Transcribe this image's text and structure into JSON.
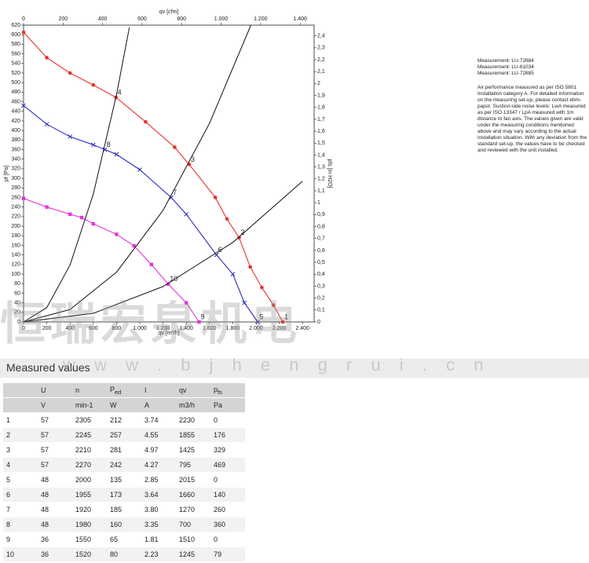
{
  "chart_data": {
    "type": "line",
    "xlabel": "qv [m³/h]",
    "x2label": "qv [cfm]",
    "ylabel": "pf [Pa]",
    "y2label": "pfs [in H2O]",
    "xlim": [
      0,
      2500
    ],
    "xticks": [
      0,
      200,
      400,
      600,
      800,
      {
        "value": 1000,
        "label": "1.000"
      },
      {
        "value": 1200,
        "label": "1.200"
      },
      {
        "value": 1400,
        "label": "1.400"
      },
      {
        "value": 1600,
        "label": "1.600"
      },
      {
        "value": 1800,
        "label": "1.800"
      },
      {
        "value": 2000,
        "label": "2.000"
      },
      {
        "value": 2200,
        "label": "2.200"
      },
      {
        "value": 2400,
        "label": "2.400"
      }
    ],
    "x2lim": [
      0,
      1471
    ],
    "x2ticks": [
      0,
      200,
      400,
      600,
      800,
      {
        "value": 1000,
        "label": "1.000"
      },
      {
        "value": 1200,
        "label": "1.200"
      },
      {
        "value": 1400,
        "label": "1.400"
      }
    ],
    "ylim": [
      0,
      620
    ],
    "yticks": [
      0,
      20,
      40,
      60,
      80,
      100,
      120,
      140,
      160,
      180,
      200,
      220,
      240,
      260,
      280,
      300,
      320,
      340,
      360,
      380,
      400,
      420,
      440,
      460,
      480,
      500,
      520,
      540,
      560,
      580,
      600,
      620
    ],
    "y2lim": [
      0,
      2.49
    ],
    "y2ticks": [
      0,
      {
        "value": 0.1,
        "label": "0,1"
      },
      {
        "value": 0.2,
        "label": "0,2"
      },
      {
        "value": 0.3,
        "label": "0,3"
      },
      {
        "value": 0.4,
        "label": "0,4"
      },
      {
        "value": 0.5,
        "label": "0,5"
      },
      {
        "value": 0.6,
        "label": "0,6"
      },
      {
        "value": 0.7,
        "label": "0,7"
      },
      {
        "value": 0.8,
        "label": "0,8"
      },
      {
        "value": 0.9,
        "label": "0,9"
      },
      1,
      {
        "value": 1.1,
        "label": "1,1"
      },
      {
        "value": 1.2,
        "label": "1,2"
      },
      {
        "value": 1.3,
        "label": "1,3"
      },
      {
        "value": 1.4,
        "label": "1,4"
      },
      {
        "value": 1.5,
        "label": "1,5"
      },
      {
        "value": 1.6,
        "label": "1,6"
      },
      {
        "value": 1.7,
        "label": "1,7"
      },
      {
        "value": 1.8,
        "label": "1,8"
      },
      {
        "value": 1.9,
        "label": "1,9"
      },
      2,
      {
        "value": 2.1,
        "label": "2,1"
      },
      {
        "value": 2.2,
        "label": "2,2"
      },
      {
        "value": 2.3,
        "label": "2,3"
      },
      {
        "value": 2.4,
        "label": "2,4"
      }
    ],
    "series": [
      {
        "color": "#e8302b",
        "marker": "circle",
        "x": [
          0,
          200,
          400,
          600,
          795,
          1050,
          1300,
          1425,
          1650,
          1750,
          1855,
          1950,
          2050,
          2150,
          2230
        ],
        "values": [
          605,
          552,
          520,
          495,
          469,
          418,
          365,
          329,
          260,
          215,
          176,
          115,
          72,
          35,
          0
        ]
      },
      {
        "color": "#2b2bbf",
        "marker": "cross",
        "x": [
          0,
          200,
          400,
          600,
          700,
          800,
          1000,
          1270,
          1400,
          1660,
          1800,
          1900,
          2015
        ],
        "values": [
          452,
          413,
          387,
          370,
          360,
          350,
          318,
          260,
          225,
          140,
          100,
          40,
          0
        ]
      },
      {
        "color": "#e633d6",
        "marker": "square",
        "x": [
          0,
          200,
          400,
          500,
          600,
          800,
          950,
          1100,
          1245,
          1400,
          1510
        ],
        "values": [
          258,
          240,
          225,
          218,
          205,
          183,
          159,
          120,
          79,
          40,
          0
        ]
      },
      {
        "color": "#111111",
        "marker": "none",
        "x": [
          0,
          200,
          400,
          600,
          800,
          910
        ],
        "values": [
          0,
          30,
          119,
          267,
          475,
          615
        ]
      },
      {
        "color": "#111111",
        "marker": "none",
        "x": [
          0,
          400,
          800,
          1200,
          1600,
          1956
        ],
        "values": [
          0,
          26,
          104,
          233,
          415,
          620
        ]
      },
      {
        "color": "#111111",
        "marker": "none",
        "x": [
          0,
          600,
          1200,
          1800,
          2400
        ],
        "values": [
          0,
          18,
          74,
          166,
          294
        ]
      }
    ],
    "annotations": [
      {
        "text": "1",
        "x": 2230,
        "y": 0
      },
      {
        "text": "2",
        "x": 1855,
        "y": 176
      },
      {
        "text": "3",
        "x": 1425,
        "y": 329
      },
      {
        "text": "4",
        "x": 795,
        "y": 469
      },
      {
        "text": "5",
        "x": 2015,
        "y": 0
      },
      {
        "text": "6",
        "x": 1660,
        "y": 140
      },
      {
        "text": "7",
        "x": 1270,
        "y": 260
      },
      {
        "text": "8",
        "x": 700,
        "y": 360
      },
      {
        "text": "9",
        "x": 1510,
        "y": 0
      },
      {
        "text": "10",
        "x": 1245,
        "y": 79
      }
    ]
  },
  "watermark": "恒瑞宏泉机电",
  "watermark_url": "w w w . b j h e n g r u i . c n",
  "measurements": [
    "Measurement: LU-72884",
    "Measurement: LU-61034",
    "Measurement: LU-72885"
  ],
  "notes": "Air performance measured as per ISO 5801 Installation category A. For detailed information on the measuring set-up, please contact ebm-papst. Suction-side noise levels: LwA measured as per ISO 13347 / LpA measured with 1m distance to fan axis. The values given are valid under the measuring conditions mentioned above and may vary according to the actual installation situation. With any deviation from the standard set-up, the values have to be checked and reviewed with the unit installed.",
  "table": {
    "title": "Measured values",
    "header": [
      [
        "",
        "U",
        "n",
        {
          "text": "P",
          "sub": "ed"
        },
        "I",
        "qv",
        {
          "text": "p",
          "sub": "fs"
        }
      ],
      [
        "",
        "V",
        "min-1",
        "W",
        "A",
        "m3/h",
        "Pa"
      ]
    ],
    "rows": [
      [
        "1",
        "57",
        "2305",
        "212",
        "3.74",
        "2230",
        "0"
      ],
      [
        "2",
        "57",
        "2245",
        "257",
        "4.55",
        "1855",
        "176"
      ],
      [
        "3",
        "57",
        "2210",
        "281",
        "4.97",
        "1425",
        "329"
      ],
      [
        "4",
        "57",
        "2270",
        "242",
        "4.27",
        "795",
        "469"
      ],
      [
        "5",
        "48",
        "2000",
        "135",
        "2.85",
        "2015",
        "0"
      ],
      [
        "6",
        "48",
        "1955",
        "173",
        "3.64",
        "1660",
        "140"
      ],
      [
        "7",
        "48",
        "1920",
        "185",
        "3.80",
        "1270",
        "260"
      ],
      [
        "8",
        "48",
        "1980",
        "160",
        "3.35",
        "700",
        "360"
      ],
      [
        "9",
        "36",
        "1550",
        "65",
        "1.81",
        "1510",
        "0"
      ],
      [
        "10",
        "36",
        "1520",
        "80",
        "2.23",
        "1245",
        "79"
      ]
    ]
  }
}
